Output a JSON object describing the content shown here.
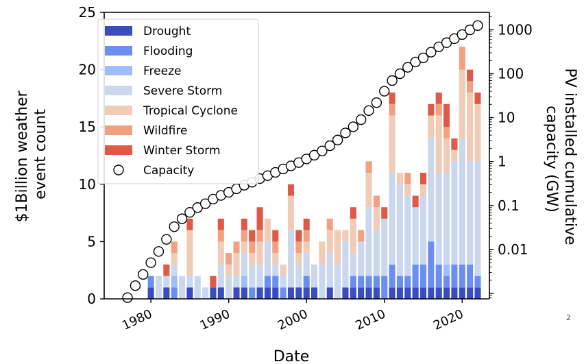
{
  "page_number": "2",
  "chart_data": {
    "type": "bar",
    "xlabel": "Date",
    "ylabel": "$1Billion weather event count",
    "y2label": "PV installed cumulative capacity (GW)",
    "x_ticks": [
      1980,
      1990,
      2000,
      2010,
      2020
    ],
    "y_ticks": [
      0,
      5,
      10,
      15,
      20,
      25
    ],
    "y2_ticks": [
      0.01,
      0.1,
      1,
      10,
      100,
      1000
    ],
    "y2_tick_labels": [
      "0.01",
      "0.1",
      "1",
      "10",
      "100",
      "1000"
    ],
    "xlim": [
      1974,
      2023.5
    ],
    "ylim": [
      0,
      25
    ],
    "y2lim": [
      0.00075,
      2500
    ],
    "y2_scale": "log",
    "legend_position": "top-left",
    "colors": {
      "Drought": "#3a4cc0",
      "Flooding": "#6b8ff0",
      "Freeze": "#9ebdfa",
      "Severe Storm": "#c9d8ef",
      "Tropical Cyclone": "#f0cbb5",
      "Wildfire": "#f3a081",
      "Winter Storm": "#de5a46",
      "Capacity": "#ffffff"
    },
    "years": [
      1980,
      1981,
      1982,
      1983,
      1984,
      1985,
      1986,
      1987,
      1988,
      1989,
      1990,
      1991,
      1992,
      1993,
      1994,
      1995,
      1996,
      1997,
      1998,
      1999,
      2000,
      2001,
      2002,
      2003,
      2004,
      2005,
      2006,
      2007,
      2008,
      2009,
      2010,
      2011,
      2012,
      2013,
      2014,
      2015,
      2016,
      2017,
      2018,
      2019,
      2020,
      2021,
      2022
    ],
    "series": [
      {
        "name": "Drought",
        "values": [
          1,
          0,
          1,
          0,
          0,
          1,
          0,
          0,
          1,
          1,
          0,
          1,
          1,
          0,
          1,
          1,
          1,
          0,
          1,
          1,
          1,
          1,
          0,
          1,
          0,
          1,
          1,
          1,
          1,
          1,
          0,
          1,
          1,
          1,
          1,
          1,
          1,
          1,
          1,
          1,
          1,
          1,
          1
        ]
      },
      {
        "name": "Flooding",
        "values": [
          1,
          0,
          0,
          1,
          0,
          0,
          0,
          0,
          0,
          0,
          0,
          0,
          0,
          1,
          0,
          1,
          1,
          1,
          0,
          0,
          1,
          0,
          0,
          0,
          0,
          0,
          1,
          1,
          1,
          1,
          2,
          2,
          1,
          1,
          2,
          2,
          4,
          2,
          1,
          2,
          2,
          2,
          1
        ]
      },
      {
        "name": "Freeze",
        "values": [
          0,
          0,
          0,
          1,
          0,
          0,
          0,
          0,
          0,
          0,
          0,
          0,
          1,
          0,
          0,
          0,
          0,
          0,
          0,
          0,
          0,
          0,
          0,
          0,
          0,
          0,
          0,
          0,
          0,
          0,
          0,
          0,
          0,
          0,
          0,
          0,
          0,
          0,
          1,
          0,
          0,
          0,
          0
        ]
      },
      {
        "name": "Severe Storm",
        "values": [
          0,
          2,
          1,
          1,
          2,
          1,
          2,
          1,
          0,
          2,
          2,
          1,
          2,
          2,
          2,
          3,
          1,
          1,
          5,
          2,
          2,
          2,
          3,
          3,
          3,
          4,
          2,
          3,
          6,
          4,
          5,
          8,
          8,
          7,
          5,
          6,
          9,
          8,
          8,
          9,
          11,
          9,
          10
        ]
      },
      {
        "name": "Tropical Cyclone",
        "values": [
          0,
          0,
          0,
          1,
          0,
          4,
          0,
          0,
          0,
          2,
          1,
          2,
          1,
          1,
          2,
          2,
          1,
          1,
          3,
          1,
          1,
          0,
          2,
          2,
          3,
          1,
          3,
          0,
          3,
          2,
          0,
          5,
          1,
          1,
          0,
          1,
          2,
          5,
          3,
          1,
          6,
          6,
          5
        ]
      },
      {
        "name": "Wildfire",
        "values": [
          0,
          0,
          0,
          1,
          0,
          0,
          0,
          0,
          0,
          1,
          1,
          1,
          1,
          1,
          1,
          0,
          1,
          0,
          0,
          1,
          1,
          0,
          0,
          1,
          0,
          0,
          0,
          1,
          1,
          1,
          0,
          1,
          0,
          1,
          0,
          0,
          0,
          1,
          1,
          0,
          2,
          1,
          0
        ]
      },
      {
        "name": "Winter Storm",
        "values": [
          0,
          0,
          1,
          0,
          0,
          1,
          0,
          0,
          1,
          1,
          0,
          0,
          1,
          1,
          2,
          0,
          1,
          0,
          1,
          1,
          1,
          0,
          0,
          0,
          0,
          0,
          1,
          0,
          0,
          0,
          1,
          1,
          0,
          0,
          1,
          1,
          1,
          1,
          2,
          1,
          0,
          1,
          1
        ]
      }
    ],
    "capacity_series": {
      "name": "Capacity",
      "years": [
        1977,
        1978,
        1979,
        1980,
        1981,
        1982,
        1983,
        1984,
        1985,
        1986,
        1987,
        1988,
        1989,
        1990,
        1991,
        1992,
        1993,
        1994,
        1995,
        1996,
        1997,
        1998,
        1999,
        2000,
        2001,
        2002,
        2003,
        2004,
        2005,
        2006,
        2007,
        2008,
        2009,
        2010,
        2011,
        2012,
        2013,
        2014,
        2015,
        2016,
        2017,
        2018,
        2019,
        2020,
        2021,
        2022
      ],
      "values_gw": [
        0.0008,
        0.0015,
        0.0027,
        0.005,
        0.009,
        0.017,
        0.033,
        0.05,
        0.07,
        0.09,
        0.11,
        0.14,
        0.17,
        0.2,
        0.24,
        0.29,
        0.34,
        0.41,
        0.48,
        0.57,
        0.68,
        0.8,
        0.95,
        1.15,
        1.4,
        1.75,
        2.3,
        3.1,
        4.5,
        6.2,
        9,
        14.5,
        22,
        40,
        70,
        100,
        140,
        185,
        230,
        310,
        410,
        510,
        630,
        780,
        1000,
        1250
      ]
    }
  }
}
